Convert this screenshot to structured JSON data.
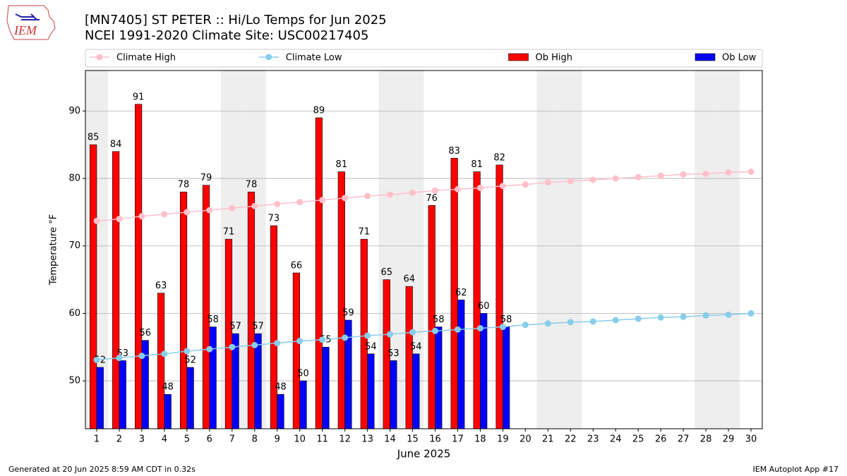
{
  "logo_text": "IEM",
  "footer_left": "Generated at 20 Jun 2025 8:59 AM CDT in 0.32s",
  "footer_right": "IEM Autoplot App #17",
  "chart_data": {
    "type": "bar",
    "title": "[MN7405] ST PETER :: Hi/Lo Temps for Jun 2025",
    "subtitle": "NCEI 1991-2020 Climate Site: USC00217405",
    "x_label": "June 2025",
    "y_label": "Temperature °F",
    "x": [
      1,
      2,
      3,
      4,
      5,
      6,
      7,
      8,
      9,
      10,
      11,
      12,
      13,
      14,
      15,
      16,
      17,
      18,
      19,
      20,
      21,
      22,
      23,
      24,
      25,
      26,
      27,
      28,
      29,
      30
    ],
    "xlim": [
      0.5,
      30.5
    ],
    "ylim": [
      42.9,
      96
    ],
    "yticks": [
      50,
      60,
      70,
      80,
      90
    ],
    "grid": true,
    "legend": "top",
    "shaded_days": [
      1,
      7,
      8,
      14,
      15,
      21,
      22,
      28,
      29
    ],
    "series": [
      {
        "name": "Climate High",
        "type": "line",
        "color": "#ffc0cb",
        "values": [
          73.7,
          74.0,
          74.4,
          74.7,
          75.0,
          75.3,
          75.6,
          75.9,
          76.2,
          76.5,
          76.8,
          77.1,
          77.4,
          77.6,
          77.9,
          78.2,
          78.4,
          78.6,
          78.9,
          79.1,
          79.4,
          79.6,
          79.8,
          80.0,
          80.2,
          80.4,
          80.6,
          80.7,
          80.9,
          81.0
        ]
      },
      {
        "name": "Climate Low",
        "type": "line",
        "color": "#87ceeb",
        "values": [
          53.1,
          53.4,
          53.7,
          54.0,
          54.4,
          54.7,
          55.0,
          55.3,
          55.6,
          55.9,
          56.1,
          56.4,
          56.7,
          56.9,
          57.2,
          57.4,
          57.6,
          57.8,
          58.0,
          58.3,
          58.5,
          58.7,
          58.8,
          59.0,
          59.2,
          59.4,
          59.5,
          59.7,
          59.8,
          60.0
        ]
      },
      {
        "name": "Ob High",
        "type": "bar",
        "color": "#ff0000",
        "values": [
          85,
          84,
          91,
          63,
          78,
          79,
          71,
          78,
          73,
          66,
          89,
          81,
          71,
          65,
          64,
          76,
          83,
          81,
          82,
          null,
          null,
          null,
          null,
          null,
          null,
          null,
          null,
          null,
          null,
          null
        ]
      },
      {
        "name": "Ob Low",
        "type": "bar",
        "color": "#0000ff",
        "values": [
          52,
          53,
          56,
          48,
          52,
          58,
          57,
          57,
          48,
          50,
          55,
          59,
          54,
          53,
          54,
          58,
          62,
          60,
          58,
          null,
          null,
          null,
          null,
          null,
          null,
          null,
          null,
          null,
          null,
          null
        ]
      }
    ]
  }
}
